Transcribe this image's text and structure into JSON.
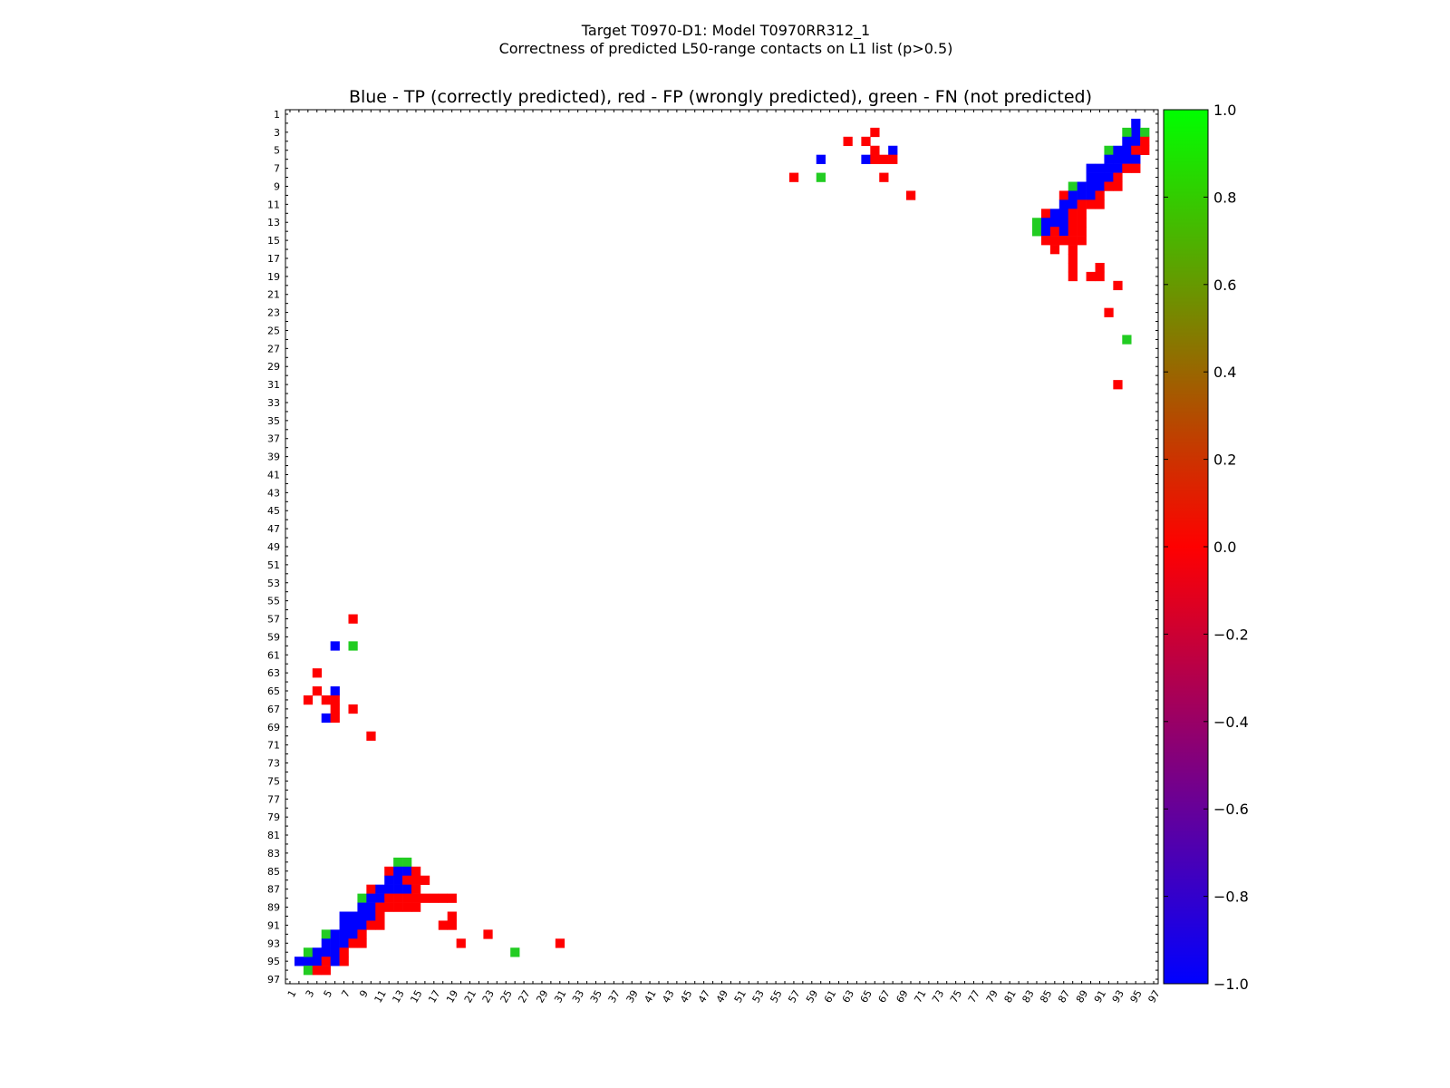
{
  "figure": {
    "suptitle_line1": "Target T0970-D1: Model T0970RR312_1",
    "suptitle_line2": "Correctness of predicted L50-range contacts on L1 list (p>0.5)"
  },
  "chart_data": {
    "type": "heatmap",
    "title": "Blue - TP (correctly predicted), red - FP (wrongly predicted), green - FN (not predicted)",
    "xlabel": "",
    "ylabel": "",
    "xlim": [
      1,
      97
    ],
    "ylim": [
      1,
      97
    ],
    "grid": false,
    "x_tick_labels": [
      "1",
      "3",
      "5",
      "7",
      "9",
      "11",
      "13",
      "15",
      "17",
      "19",
      "21",
      "23",
      "25",
      "27",
      "29",
      "31",
      "33",
      "35",
      "37",
      "39",
      "41",
      "43",
      "45",
      "47",
      "49",
      "51",
      "53",
      "55",
      "57",
      "59",
      "61",
      "63",
      "65",
      "67",
      "69",
      "71",
      "73",
      "75",
      "77",
      "79",
      "81",
      "83",
      "85",
      "87",
      "89",
      "91",
      "93",
      "95",
      "97"
    ],
    "y_tick_labels": [
      "1",
      "3",
      "5",
      "7",
      "9",
      "11",
      "13",
      "15",
      "17",
      "19",
      "21",
      "23",
      "25",
      "27",
      "29",
      "31",
      "33",
      "35",
      "37",
      "39",
      "41",
      "43",
      "45",
      "47",
      "49",
      "51",
      "53",
      "55",
      "57",
      "59",
      "61",
      "63",
      "65",
      "67",
      "69",
      "71",
      "73",
      "75",
      "77",
      "79",
      "81",
      "83",
      "85",
      "87",
      "89",
      "91",
      "93",
      "95",
      "97"
    ],
    "colorbar": {
      "min": -1.0,
      "max": 1.0,
      "ticks": [
        "1.0",
        "0.8",
        "0.6",
        "0.4",
        "0.2",
        "0.0",
        "−0.2",
        "−0.4",
        "−0.6",
        "−0.8",
        "−1.0"
      ],
      "colors": {
        "tp": "#0000ff",
        "fp": "#ff0000",
        "fn": "#22cc22"
      }
    },
    "cells_legend": {
      "tp": "-1.0 (TP)",
      "fp": "0.0 (FP)",
      "fn": "1.0 (FN)"
    },
    "cells": [
      {
        "i": 2,
        "j": 95,
        "c": "tp"
      },
      {
        "i": 3,
        "j": 95,
        "c": "tp"
      },
      {
        "i": 3,
        "j": 94,
        "c": "fn"
      },
      {
        "i": 3,
        "j": 96,
        "c": "fn"
      },
      {
        "i": 4,
        "j": 94,
        "c": "tp"
      },
      {
        "i": 4,
        "j": 95,
        "c": "tp"
      },
      {
        "i": 4,
        "j": 96,
        "c": "fp"
      },
      {
        "i": 5,
        "j": 92,
        "c": "fn"
      },
      {
        "i": 5,
        "j": 93,
        "c": "tp"
      },
      {
        "i": 5,
        "j": 94,
        "c": "tp"
      },
      {
        "i": 5,
        "j": 95,
        "c": "fp"
      },
      {
        "i": 5,
        "j": 96,
        "c": "fp"
      },
      {
        "i": 6,
        "j": 92,
        "c": "tp"
      },
      {
        "i": 6,
        "j": 93,
        "c": "tp"
      },
      {
        "i": 6,
        "j": 94,
        "c": "tp"
      },
      {
        "i": 6,
        "j": 95,
        "c": "tp"
      },
      {
        "i": 7,
        "j": 90,
        "c": "tp"
      },
      {
        "i": 7,
        "j": 91,
        "c": "tp"
      },
      {
        "i": 7,
        "j": 92,
        "c": "tp"
      },
      {
        "i": 7,
        "j": 93,
        "c": "tp"
      },
      {
        "i": 7,
        "j": 94,
        "c": "fp"
      },
      {
        "i": 7,
        "j": 95,
        "c": "fp"
      },
      {
        "i": 8,
        "j": 90,
        "c": "tp"
      },
      {
        "i": 8,
        "j": 91,
        "c": "tp"
      },
      {
        "i": 8,
        "j": 92,
        "c": "tp"
      },
      {
        "i": 8,
        "j": 93,
        "c": "fp"
      },
      {
        "i": 9,
        "j": 88,
        "c": "fn"
      },
      {
        "i": 9,
        "j": 89,
        "c": "tp"
      },
      {
        "i": 9,
        "j": 90,
        "c": "tp"
      },
      {
        "i": 9,
        "j": 91,
        "c": "tp"
      },
      {
        "i": 9,
        "j": 92,
        "c": "fp"
      },
      {
        "i": 9,
        "j": 93,
        "c": "fp"
      },
      {
        "i": 10,
        "j": 87,
        "c": "fp"
      },
      {
        "i": 10,
        "j": 88,
        "c": "tp"
      },
      {
        "i": 10,
        "j": 89,
        "c": "tp"
      },
      {
        "i": 10,
        "j": 90,
        "c": "tp"
      },
      {
        "i": 10,
        "j": 91,
        "c": "fp"
      },
      {
        "i": 11,
        "j": 87,
        "c": "tp"
      },
      {
        "i": 11,
        "j": 88,
        "c": "tp"
      },
      {
        "i": 11,
        "j": 89,
        "c": "fp"
      },
      {
        "i": 11,
        "j": 90,
        "c": "fp"
      },
      {
        "i": 11,
        "j": 91,
        "c": "fp"
      },
      {
        "i": 12,
        "j": 85,
        "c": "fp"
      },
      {
        "i": 12,
        "j": 86,
        "c": "tp"
      },
      {
        "i": 12,
        "j": 87,
        "c": "tp"
      },
      {
        "i": 12,
        "j": 88,
        "c": "fp"
      },
      {
        "i": 12,
        "j": 89,
        "c": "fp"
      },
      {
        "i": 13,
        "j": 84,
        "c": "fn"
      },
      {
        "i": 13,
        "j": 85,
        "c": "tp"
      },
      {
        "i": 13,
        "j": 86,
        "c": "tp"
      },
      {
        "i": 13,
        "j": 87,
        "c": "tp"
      },
      {
        "i": 13,
        "j": 88,
        "c": "fp"
      },
      {
        "i": 13,
        "j": 89,
        "c": "fp"
      },
      {
        "i": 14,
        "j": 84,
        "c": "fn"
      },
      {
        "i": 14,
        "j": 85,
        "c": "tp"
      },
      {
        "i": 14,
        "j": 86,
        "c": "fp"
      },
      {
        "i": 14,
        "j": 87,
        "c": "tp"
      },
      {
        "i": 14,
        "j": 88,
        "c": "fp"
      },
      {
        "i": 14,
        "j": 89,
        "c": "fp"
      },
      {
        "i": 15,
        "j": 85,
        "c": "fp"
      },
      {
        "i": 15,
        "j": 86,
        "c": "fp"
      },
      {
        "i": 15,
        "j": 87,
        "c": "fp"
      },
      {
        "i": 15,
        "j": 88,
        "c": "fp"
      },
      {
        "i": 15,
        "j": 89,
        "c": "fp"
      },
      {
        "i": 16,
        "j": 86,
        "c": "fp"
      },
      {
        "i": 16,
        "j": 88,
        "c": "fp"
      },
      {
        "i": 17,
        "j": 88,
        "c": "fp"
      },
      {
        "i": 18,
        "j": 88,
        "c": "fp"
      },
      {
        "i": 18,
        "j": 91,
        "c": "fp"
      },
      {
        "i": 19,
        "j": 88,
        "c": "fp"
      },
      {
        "i": 19,
        "j": 90,
        "c": "fp"
      },
      {
        "i": 19,
        "j": 91,
        "c": "fp"
      },
      {
        "i": 20,
        "j": 93,
        "c": "fp"
      },
      {
        "i": 23,
        "j": 92,
        "c": "fp"
      },
      {
        "i": 26,
        "j": 94,
        "c": "fn"
      },
      {
        "i": 31,
        "j": 93,
        "c": "fp"
      },
      {
        "i": 3,
        "j": 66,
        "c": "fp"
      },
      {
        "i": 4,
        "j": 63,
        "c": "fp"
      },
      {
        "i": 4,
        "j": 65,
        "c": "fp"
      },
      {
        "i": 5,
        "j": 66,
        "c": "fp"
      },
      {
        "i": 5,
        "j": 68,
        "c": "tp"
      },
      {
        "i": 6,
        "j": 60,
        "c": "tp"
      },
      {
        "i": 6,
        "j": 65,
        "c": "tp"
      },
      {
        "i": 6,
        "j": 66,
        "c": "fp"
      },
      {
        "i": 6,
        "j": 67,
        "c": "fp"
      },
      {
        "i": 6,
        "j": 68,
        "c": "fp"
      },
      {
        "i": 8,
        "j": 57,
        "c": "fp"
      },
      {
        "i": 8,
        "j": 60,
        "c": "fn"
      },
      {
        "i": 8,
        "j": 67,
        "c": "fp"
      },
      {
        "i": 10,
        "j": 70,
        "c": "fp"
      }
    ]
  }
}
